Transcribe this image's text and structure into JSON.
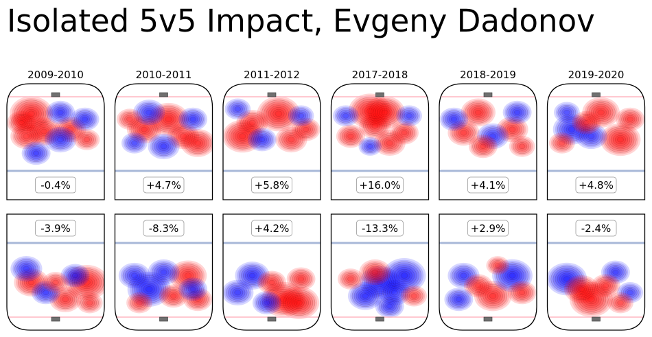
{
  "title": "Isolated 5v5 Impact, Evgeny Dadonov",
  "colors": {
    "positive": "#ff0000",
    "negative": "#0000ff",
    "rink_line": "#000000",
    "blue_line": "#a8b8d8",
    "goal_line": "#ffb6c1",
    "net": "#707070"
  },
  "chart_data": {
    "type": "heatmap",
    "title": "Isolated 5v5 Impact, Evgeny Dadonov",
    "seasons": [
      "2009-2010",
      "2010-2011",
      "2011-2012",
      "2017-2018",
      "2018-2019",
      "2019-2020"
    ],
    "panels": [
      {
        "season": "2009-2010",
        "offense_label": "-0.4%",
        "defense_label": "-3.9%",
        "offense": [
          {
            "x": 0.25,
            "y": 0.22,
            "v": 1.0
          },
          {
            "x": 0.38,
            "y": 0.48,
            "v": 0.7
          },
          {
            "x": 0.2,
            "y": 0.55,
            "v": 0.6
          },
          {
            "x": 0.65,
            "y": 0.45,
            "v": 0.6
          },
          {
            "x": 0.55,
            "y": 0.2,
            "v": -0.5
          },
          {
            "x": 0.8,
            "y": 0.3,
            "v": -0.5
          },
          {
            "x": 0.15,
            "y": 0.35,
            "v": 0.5
          },
          {
            "x": 0.55,
            "y": 0.6,
            "v": -0.6
          },
          {
            "x": 0.82,
            "y": 0.6,
            "v": 0.4
          },
          {
            "x": 0.3,
            "y": 0.8,
            "v": -0.5
          }
        ],
        "defense": [
          {
            "x": 0.82,
            "y": 0.55,
            "v": 1.0
          },
          {
            "x": 0.25,
            "y": 0.55,
            "v": 0.7
          },
          {
            "x": 0.6,
            "y": 0.8,
            "v": 0.6
          },
          {
            "x": 0.4,
            "y": 0.7,
            "v": -0.5
          },
          {
            "x": 0.7,
            "y": 0.45,
            "v": -0.5
          },
          {
            "x": 0.2,
            "y": 0.35,
            "v": -0.6
          },
          {
            "x": 0.85,
            "y": 0.85,
            "v": 0.4
          },
          {
            "x": 0.5,
            "y": 0.55,
            "v": 0.4
          }
        ]
      },
      {
        "season": "2010-2011",
        "offense_label": "+4.7%",
        "defense_label": "-8.3%",
        "offense": [
          {
            "x": 0.55,
            "y": 0.3,
            "v": 0.9
          },
          {
            "x": 0.3,
            "y": 0.45,
            "v": 0.7
          },
          {
            "x": 0.7,
            "y": 0.55,
            "v": 0.6
          },
          {
            "x": 0.85,
            "y": 0.65,
            "v": 0.7
          },
          {
            "x": 0.35,
            "y": 0.2,
            "v": -0.6
          },
          {
            "x": 0.8,
            "y": 0.3,
            "v": -0.5
          },
          {
            "x": 0.5,
            "y": 0.7,
            "v": -0.6
          },
          {
            "x": 0.15,
            "y": 0.3,
            "v": 0.4
          },
          {
            "x": 0.2,
            "y": 0.65,
            "v": -0.4
          }
        ],
        "defense": [
          {
            "x": 0.75,
            "y": 0.45,
            "v": 0.8
          },
          {
            "x": 0.35,
            "y": 0.65,
            "v": -1.0
          },
          {
            "x": 0.5,
            "y": 0.4,
            "v": -0.6
          },
          {
            "x": 0.85,
            "y": 0.8,
            "v": 0.5
          },
          {
            "x": 0.2,
            "y": 0.45,
            "v": -0.6
          },
          {
            "x": 0.6,
            "y": 0.75,
            "v": 0.5
          },
          {
            "x": 0.8,
            "y": 0.65,
            "v": -0.5
          },
          {
            "x": 0.25,
            "y": 0.85,
            "v": 0.4
          }
        ]
      },
      {
        "season": "2011-2012",
        "offense_label": "+5.8%",
        "defense_label": "+4.2%",
        "offense": [
          {
            "x": 0.57,
            "y": 0.22,
            "v": 1.0
          },
          {
            "x": 0.2,
            "y": 0.55,
            "v": 0.9
          },
          {
            "x": 0.3,
            "y": 0.35,
            "v": 0.6
          },
          {
            "x": 0.7,
            "y": 0.6,
            "v": 0.6
          },
          {
            "x": 0.85,
            "y": 0.45,
            "v": 0.5
          },
          {
            "x": 0.4,
            "y": 0.6,
            "v": -0.5
          },
          {
            "x": 0.8,
            "y": 0.25,
            "v": -0.4
          },
          {
            "x": 0.15,
            "y": 0.15,
            "v": -0.4
          }
        ],
        "defense": [
          {
            "x": 0.62,
            "y": 0.8,
            "v": 1.0
          },
          {
            "x": 0.78,
            "y": 0.85,
            "v": 0.9
          },
          {
            "x": 0.3,
            "y": 0.45,
            "v": -0.7
          },
          {
            "x": 0.5,
            "y": 0.55,
            "v": 0.5
          },
          {
            "x": 0.15,
            "y": 0.7,
            "v": -0.6
          },
          {
            "x": 0.45,
            "y": 0.85,
            "v": -0.5
          },
          {
            "x": 0.8,
            "y": 0.5,
            "v": 0.5
          }
        ]
      },
      {
        "season": "2017-2018",
        "offense_label": "+16.0%",
        "defense_label": "-13.3%",
        "offense": [
          {
            "x": 0.4,
            "y": 0.18,
            "v": 1.0
          },
          {
            "x": 0.55,
            "y": 0.2,
            "v": 0.9
          },
          {
            "x": 0.45,
            "y": 0.4,
            "v": 0.6
          },
          {
            "x": 0.75,
            "y": 0.5,
            "v": 0.5
          },
          {
            "x": 0.2,
            "y": 0.55,
            "v": 0.5
          },
          {
            "x": 0.6,
            "y": 0.65,
            "v": 0.6
          },
          {
            "x": 0.8,
            "y": 0.25,
            "v": -0.4
          },
          {
            "x": 0.15,
            "y": 0.25,
            "v": -0.4
          },
          {
            "x": 0.4,
            "y": 0.7,
            "v": -0.3
          }
        ],
        "defense": [
          {
            "x": 0.5,
            "y": 0.55,
            "v": -0.9
          },
          {
            "x": 0.75,
            "y": 0.45,
            "v": -1.0
          },
          {
            "x": 0.35,
            "y": 0.75,
            "v": -0.7
          },
          {
            "x": 0.45,
            "y": 0.4,
            "v": 0.6
          },
          {
            "x": 0.65,
            "y": 0.7,
            "v": -0.6
          },
          {
            "x": 0.2,
            "y": 0.5,
            "v": 0.4
          },
          {
            "x": 0.85,
            "y": 0.75,
            "v": 0.4
          },
          {
            "x": 0.6,
            "y": 0.9,
            "v": -0.5
          }
        ]
      },
      {
        "season": "2018-2019",
        "offense_label": "+4.1%",
        "defense_label": "+2.9%",
        "offense": [
          {
            "x": 0.4,
            "y": 0.2,
            "v": 0.7
          },
          {
            "x": 0.75,
            "y": 0.45,
            "v": 0.6
          },
          {
            "x": 0.25,
            "y": 0.5,
            "v": 0.6
          },
          {
            "x": 0.55,
            "y": 0.55,
            "v": -0.6
          },
          {
            "x": 0.8,
            "y": 0.2,
            "v": -0.5
          },
          {
            "x": 0.15,
            "y": 0.3,
            "v": -0.5
          },
          {
            "x": 0.45,
            "y": 0.7,
            "v": 0.5
          },
          {
            "x": 0.85,
            "y": 0.7,
            "v": 0.4
          }
        ],
        "defense": [
          {
            "x": 0.55,
            "y": 0.75,
            "v": 0.8
          },
          {
            "x": 0.75,
            "y": 0.45,
            "v": -0.9
          },
          {
            "x": 0.25,
            "y": 0.45,
            "v": -0.6
          },
          {
            "x": 0.4,
            "y": 0.6,
            "v": 0.5
          },
          {
            "x": 0.85,
            "y": 0.7,
            "v": 0.5
          },
          {
            "x": 0.2,
            "y": 0.8,
            "v": -0.5
          },
          {
            "x": 0.6,
            "y": 0.3,
            "v": 0.3
          }
        ]
      },
      {
        "season": "2019-2020",
        "offense_label": "+4.8%",
        "defense_label": "-2.4%",
        "offense": [
          {
            "x": 0.55,
            "y": 0.2,
            "v": 0.8
          },
          {
            "x": 0.75,
            "y": 0.6,
            "v": 0.9
          },
          {
            "x": 0.25,
            "y": 0.45,
            "v": -0.8
          },
          {
            "x": 0.45,
            "y": 0.55,
            "v": -0.6
          },
          {
            "x": 0.85,
            "y": 0.3,
            "v": 0.5
          },
          {
            "x": 0.2,
            "y": 0.2,
            "v": -0.4
          },
          {
            "x": 0.4,
            "y": 0.35,
            "v": 0.5
          },
          {
            "x": 0.15,
            "y": 0.65,
            "v": 0.4
          }
        ],
        "defense": [
          {
            "x": 0.45,
            "y": 0.8,
            "v": 1.0
          },
          {
            "x": 0.2,
            "y": 0.5,
            "v": -0.9
          },
          {
            "x": 0.35,
            "y": 0.65,
            "v": 0.7
          },
          {
            "x": 0.7,
            "y": 0.4,
            "v": -0.5
          },
          {
            "x": 0.6,
            "y": 0.6,
            "v": 0.5
          },
          {
            "x": 0.85,
            "y": 0.7,
            "v": -0.4
          },
          {
            "x": 0.75,
            "y": 0.85,
            "v": 0.4
          }
        ]
      }
    ]
  }
}
